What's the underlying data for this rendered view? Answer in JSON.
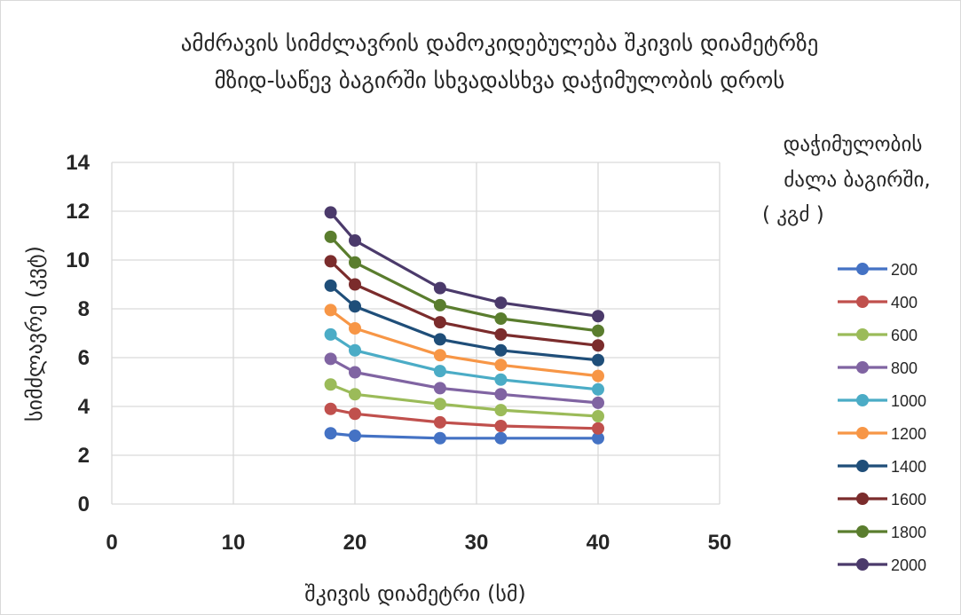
{
  "chart_data": {
    "type": "line",
    "title": [
      "ამძრავის სიმძლავრის დამოკიდებულება შკივის დიამეტრზე",
      "მზიდ-საწევ ბაგირში სხვადასხვა დაჭიმულობის დროს"
    ],
    "xlabel": "შკივის დიამეტრი (სმ)",
    "ylabel": "სიმძლავრე (კვტ)",
    "xlim": [
      0,
      50
    ],
    "ylim": [
      0,
      14
    ],
    "xticks": [
      0,
      10,
      20,
      30,
      40,
      50
    ],
    "yticks": [
      0,
      2,
      4,
      6,
      8,
      10,
      12,
      14
    ],
    "grid": true,
    "legend_title": [
      "დაჭიმულობის",
      "ძალა ბაგირში,",
      "( კგძ )"
    ],
    "legend_position": "right",
    "x": [
      18,
      20,
      27,
      32,
      40
    ],
    "series": [
      {
        "name": "200",
        "color": "#4472C4",
        "values": [
          2.9,
          2.8,
          2.7,
          2.7,
          2.7
        ]
      },
      {
        "name": "400",
        "color": "#C0504D",
        "values": [
          3.9,
          3.7,
          3.35,
          3.2,
          3.1
        ]
      },
      {
        "name": "600",
        "color": "#9BBB59",
        "values": [
          4.9,
          4.5,
          4.1,
          3.85,
          3.6
        ]
      },
      {
        "name": "800",
        "color": "#8064A2",
        "values": [
          5.95,
          5.4,
          4.75,
          4.5,
          4.15
        ]
      },
      {
        "name": "1000",
        "color": "#4BACC6",
        "values": [
          6.95,
          6.3,
          5.45,
          5.1,
          4.7
        ]
      },
      {
        "name": "1200",
        "color": "#F79646",
        "values": [
          7.95,
          7.2,
          6.1,
          5.7,
          5.25
        ]
      },
      {
        "name": "1400",
        "color": "#1F4E79",
        "values": [
          8.95,
          8.1,
          6.75,
          6.3,
          5.9
        ]
      },
      {
        "name": "1600",
        "color": "#7B2C2C",
        "values": [
          9.95,
          9.0,
          7.45,
          6.95,
          6.5
        ]
      },
      {
        "name": "1800",
        "color": "#5A7D2E",
        "values": [
          10.95,
          9.9,
          8.15,
          7.6,
          7.1
        ]
      },
      {
        "name": "2000",
        "color": "#4B3A6B",
        "values": [
          11.95,
          10.8,
          8.85,
          8.25,
          7.7
        ]
      }
    ]
  }
}
